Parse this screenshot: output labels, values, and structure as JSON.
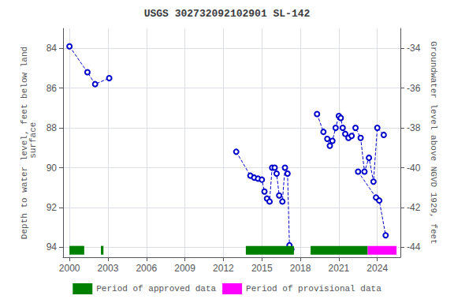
{
  "chart_data": {
    "type": "line",
    "title": "USGS 302732092102901 SL-142",
    "ylabel": "Depth to water level, feet below land\n surface",
    "y2label": "Groundwater level above NGVD 1929, feet",
    "xlim": [
      1999.5,
      2025.8
    ],
    "xticks": [
      2000,
      2003,
      2006,
      2009,
      2012,
      2015,
      2018,
      2021,
      2024
    ],
    "ylim": [
      94.5,
      83.0
    ],
    "yticks": [
      84.0,
      86.0,
      88.0,
      90.0,
      92.0,
      94.0
    ],
    "y2lim": [
      -44.5,
      -33.0
    ],
    "y2ticks": [
      -34.0,
      -36.0,
      -38.0,
      -40.0,
      -42.0,
      -44.0
    ],
    "grid": true,
    "legend": "bottom",
    "series": [
      {
        "color": "#0000cc",
        "marker": "circle",
        "line_style": "dashed",
        "x": [
          2000.0,
          2001.4,
          2002.0,
          2003.1
        ],
        "values": [
          83.9,
          85.2,
          85.8,
          85.5
        ]
      },
      {
        "color": "#0000cc",
        "marker": "circle",
        "line_style": "dashed",
        "x": [
          2013.0,
          2014.1,
          2014.4,
          2014.7,
          2015.0,
          2015.2,
          2015.4,
          2015.6,
          2015.8,
          2016.0,
          2016.15,
          2016.35,
          2016.6,
          2016.8,
          2017.0,
          2017.15,
          2017.3
        ],
        "values": [
          89.2,
          90.4,
          90.5,
          90.55,
          90.6,
          91.2,
          91.55,
          91.7,
          90.0,
          90.0,
          90.3,
          91.4,
          91.7,
          90.0,
          90.3,
          93.9,
          94.1
        ]
      },
      {
        "color": "#0000cc",
        "marker": "circle",
        "line_style": "dashed",
        "x": [
          2019.3,
          2019.8,
          2020.1,
          2020.3,
          2020.5,
          2020.75,
          2021.0,
          2021.15,
          2021.3,
          2021.5,
          2021.75,
          2022.0,
          2022.3,
          2022.7,
          2023.0,
          2023.35,
          2023.7,
          2024.0,
          2024.5
        ],
        "values": [
          87.3,
          88.2,
          88.55,
          88.9,
          88.65,
          88.0,
          87.4,
          87.5,
          88.0,
          88.3,
          88.5,
          88.4,
          88.0,
          88.5,
          90.2,
          89.5,
          90.7,
          88.0,
          88.35
        ]
      },
      {
        "color": "#0000cc",
        "marker": "circle",
        "line_style": "dashed",
        "x": [
          2022.5,
          2023.9,
          2024.15,
          2024.65
        ],
        "values": [
          90.2,
          91.5,
          91.65,
          93.4
        ]
      }
    ],
    "period_bar_y": 94.15,
    "period_bar_halfh": 0.22,
    "periods": [
      {
        "name": "Period of approved data",
        "color": "#008000",
        "ranges": [
          [
            2000.0,
            2001.15
          ],
          [
            2002.45,
            2002.65
          ],
          [
            2013.75,
            2017.5
          ],
          [
            2018.8,
            2023.25
          ]
        ]
      },
      {
        "name": "Period of provisional data",
        "color": "#ff00ff",
        "ranges": [
          [
            2023.25,
            2025.5
          ]
        ]
      }
    ]
  }
}
